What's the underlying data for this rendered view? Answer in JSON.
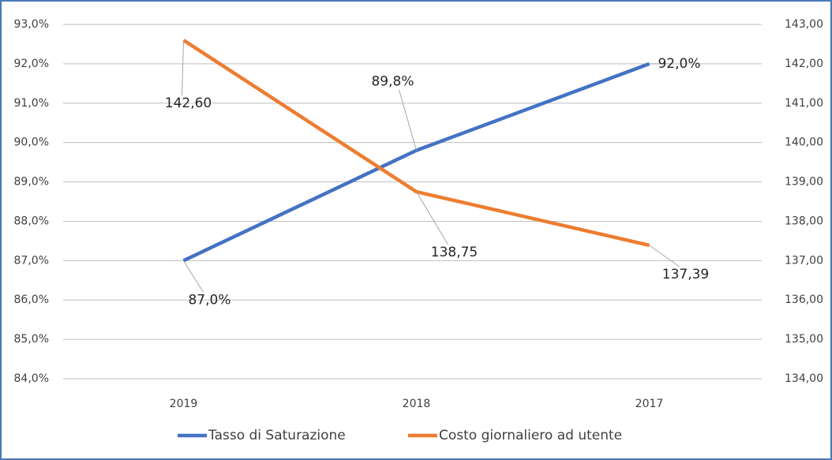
{
  "chart_data": {
    "type": "line",
    "categories": [
      "2019",
      "2018",
      "2017"
    ],
    "series": [
      {
        "name": "Tasso di Saturazione",
        "color": "#4472c4",
        "values": [
          87,
          89.8,
          92
        ],
        "value_labels": [
          "87,0%",
          "89,8%",
          "92,0%"
        ]
      },
      {
        "name": "Costo giornaliero ad utente",
        "color": "#ed7d31",
        "axis": "y2",
        "values": [
          142.6,
          138.75,
          137.39
        ],
        "value_labels": [
          "142,60",
          "138,75",
          "137,39"
        ]
      }
    ],
    "ylim": [
      84,
      93
    ],
    "yticks": [
      {
        "value": 84,
        "label": "84,0%"
      },
      {
        "value": 85,
        "label": "85,0%"
      },
      {
        "value": 86,
        "label": "86,0%"
      },
      {
        "value": 87,
        "label": "87,0%"
      },
      {
        "value": 88,
        "label": "88,0%"
      },
      {
        "value": 89,
        "label": "89,0%"
      },
      {
        "value": 90,
        "label": "90,0%"
      },
      {
        "value": 91,
        "label": "91,0%"
      },
      {
        "value": 92,
        "label": "92,0%"
      },
      {
        "value": 93,
        "label": "93,0%"
      }
    ],
    "y2lim": [
      134,
      143
    ],
    "y2ticks": [
      {
        "value": 134,
        "label": "134,00"
      },
      {
        "value": 135,
        "label": "135,00"
      },
      {
        "value": 136,
        "label": "136,00"
      },
      {
        "value": 137,
        "label": "137,00"
      },
      {
        "value": 138,
        "label": "138,00"
      },
      {
        "value": 139,
        "label": "139,00"
      },
      {
        "value": 140,
        "label": "140,00"
      },
      {
        "value": 141,
        "label": "141,00"
      },
      {
        "value": 142,
        "label": "142,00"
      },
      {
        "value": 143,
        "label": "143,00"
      }
    ],
    "grid": true
  }
}
